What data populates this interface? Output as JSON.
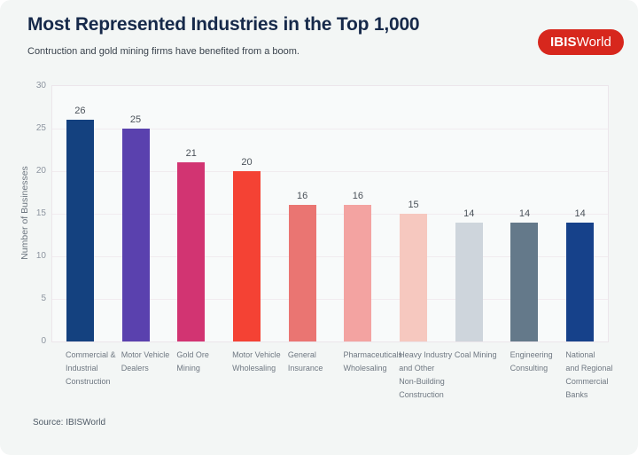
{
  "header": {
    "title": "Most Represented Industries in the Top 1,000",
    "subtitle": "Contruction and gold mining firms have benefited from a boom.",
    "logo": {
      "bold": "IBIS",
      "regular": "World",
      "bg_color": "#d7271d"
    }
  },
  "footer": {
    "source": "Source: IBISWorld"
  },
  "chart_data": {
    "type": "bar",
    "title": "Most Represented Industries in the Top 1,000",
    "subtitle": "Contruction and gold mining firms have benefited from a boom.",
    "ylabel": "Number of Businesses",
    "xlabel": "",
    "ylim": [
      0,
      30
    ],
    "yticks": [
      0,
      5,
      10,
      15,
      20,
      25,
      30
    ],
    "grid": "horizontal",
    "legend": "none",
    "source": "Source: IBISWorld",
    "categories": [
      "Commercial & Industrial Construction",
      "Motor Vehicle Dealers",
      "Gold Ore Mining",
      "Motor Vehicle Wholesaling",
      "General Insurance",
      "Pharmaceuticals Wholesaling",
      "Heavy Industry and Other Non-Building Construction",
      "Coal Mining",
      "Engineering Consulting",
      "National and Regional Commercial Banks"
    ],
    "values": [
      26,
      25,
      21,
      20,
      16,
      16,
      15,
      14,
      14,
      14
    ],
    "bars": [
      {
        "label_lines": [
          "Commercial &",
          "Industrial",
          "Construction"
        ],
        "value": 26,
        "color": "#14417f"
      },
      {
        "label_lines": [
          "Motor Vehicle",
          "Dealers"
        ],
        "value": 25,
        "color": "#5a41ae"
      },
      {
        "label_lines": [
          "Gold Ore",
          "Mining"
        ],
        "value": 21,
        "color": "#d23472"
      },
      {
        "label_lines": [
          "Motor Vehicle",
          "Wholesaling"
        ],
        "value": 20,
        "color": "#f44234"
      },
      {
        "label_lines": [
          "General",
          "Insurance"
        ],
        "value": 16,
        "color": "#ea7572"
      },
      {
        "label_lines": [
          "Pharmaceuticals",
          "Wholesaling"
        ],
        "value": 16,
        "color": "#f3a3a1"
      },
      {
        "label_lines": [
          "Heavy Industry",
          "and Other",
          "Non-Building",
          "Construction"
        ],
        "value": 15,
        "color": "#f6c8bf"
      },
      {
        "label_lines": [
          "Coal Mining"
        ],
        "value": 14,
        "color": "#ced5dc"
      },
      {
        "label_lines": [
          "Engineering",
          "Consulting"
        ],
        "value": 14,
        "color": "#64798a"
      },
      {
        "label_lines": [
          "National",
          "and Regional",
          "Commercial",
          "Banks"
        ],
        "value": 14,
        "color": "#16418a"
      }
    ]
  }
}
